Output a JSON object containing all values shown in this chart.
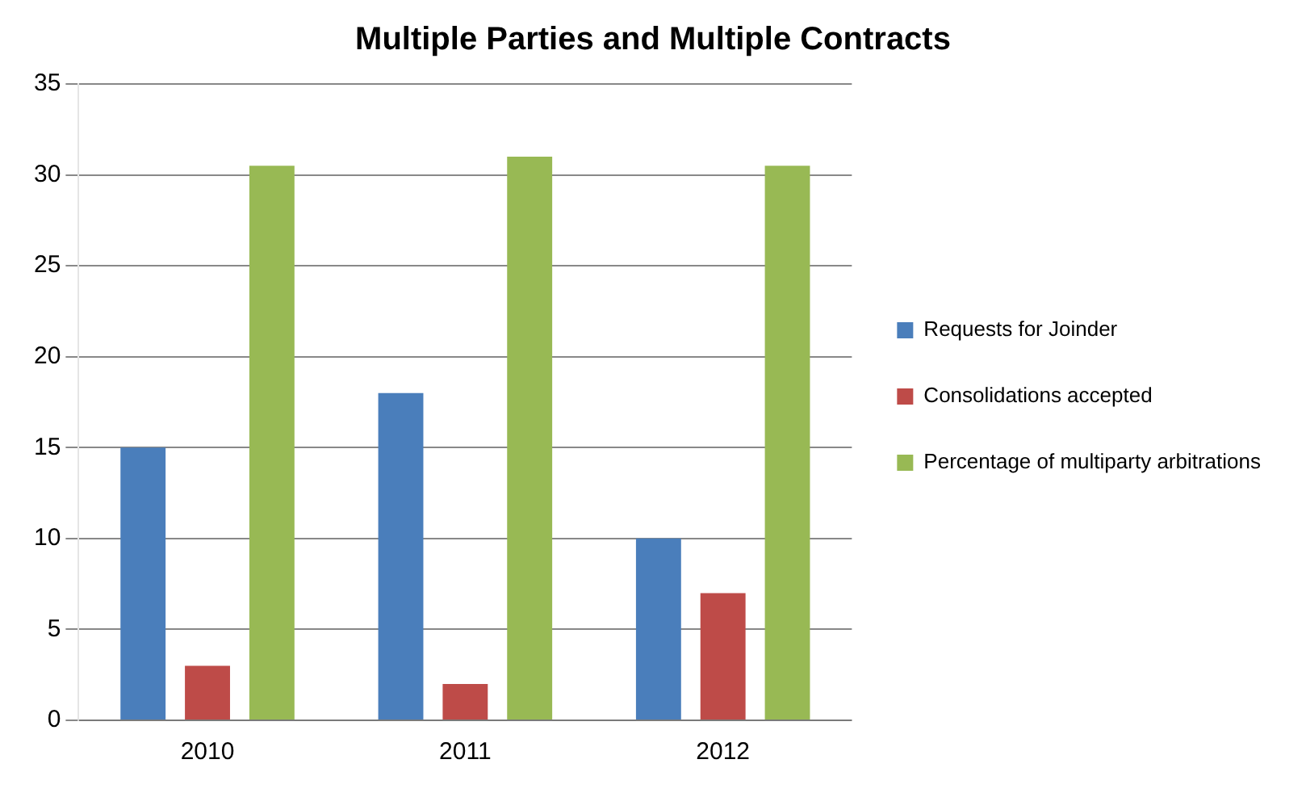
{
  "chart_data": {
    "type": "bar",
    "title": "Multiple Parties and Multiple Contracts",
    "categories": [
      "2010",
      "2011",
      "2012"
    ],
    "series": [
      {
        "name": "Requests for Joinder",
        "color": "#4a7ebb",
        "values": [
          15,
          18,
          10
        ]
      },
      {
        "name": "Consolidations accepted",
        "color": "#be4b48",
        "values": [
          3,
          2,
          7
        ]
      },
      {
        "name": "Percentage of multiparty arbitrations",
        "color": "#98b954",
        "values": [
          30.5,
          31,
          30.5
        ]
      }
    ],
    "ylim": [
      0,
      35
    ],
    "yticks": [
      0,
      5,
      10,
      15,
      20,
      25,
      30,
      35
    ],
    "grid": "y",
    "legend": "right"
  }
}
